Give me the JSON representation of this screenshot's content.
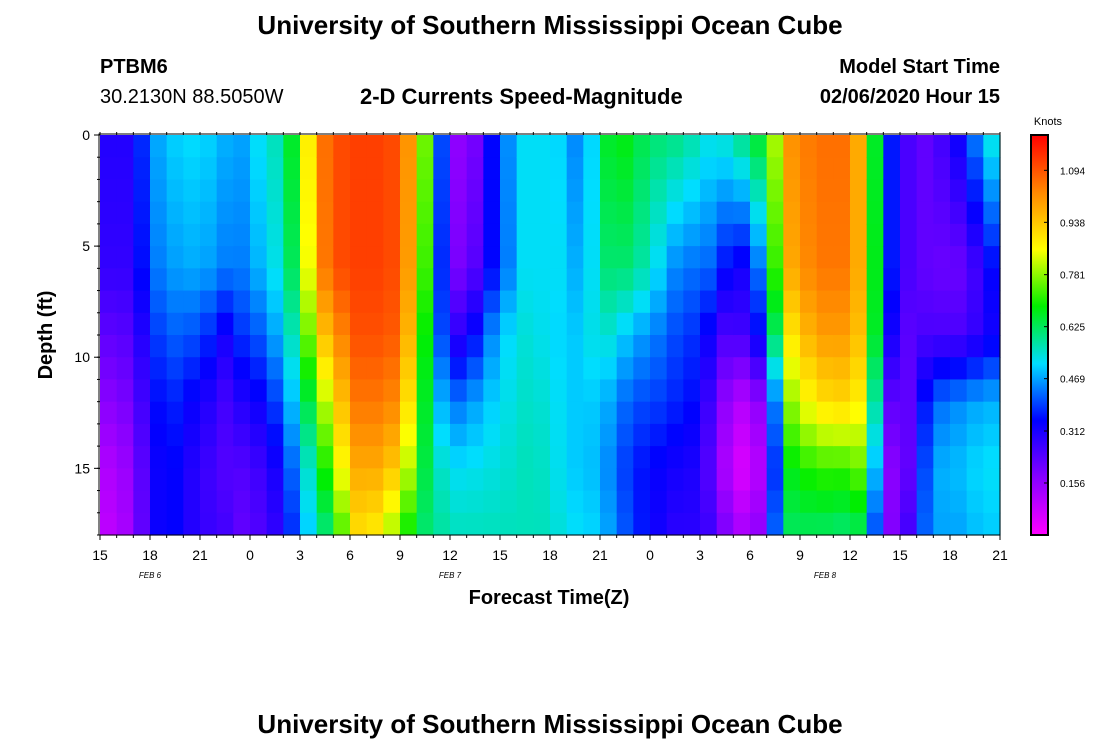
{
  "page": {
    "title_top": "University of Southern Mississippi Ocean Cube",
    "title_bottom": "University of Southern Mississippi Ocean Cube",
    "station_id": "PTBM6",
    "station_location": "30.2130N 88.5050W",
    "center_title": "2-D Currents Speed-Magnitude",
    "model_start_label": "Model Start Time",
    "model_start_value": "02/06/2020 Hour 15"
  },
  "chart_data": {
    "type": "heatmap",
    "title": "2-D Currents Speed-Magnitude",
    "xlabel": "Forecast Time(Z)",
    "ylabel": "Depth (ft)",
    "x_ticks": [
      "15",
      "18",
      "21",
      "0",
      "3",
      "6",
      "9",
      "12",
      "15",
      "18",
      "21",
      "0",
      "3",
      "6",
      "9",
      "12",
      "15",
      "18",
      "21"
    ],
    "x_range_hours": [
      0,
      54
    ],
    "y_ticks": [
      "0",
      "5",
      "10",
      "15"
    ],
    "y_range_ft": [
      0,
      18
    ],
    "date_labels": [
      {
        "label": "FEB 6",
        "hour": 3
      },
      {
        "label": "FEB 7",
        "hour": 21
      },
      {
        "label": "FEB 8",
        "hour": 43.5
      }
    ],
    "colorbar": {
      "unit": "Knots",
      "min": 0,
      "max": 1.2,
      "tick_values": [
        0.156,
        0.312,
        0.469,
        0.625,
        0.781,
        0.938,
        1.094
      ],
      "tick_labels": [
        "0.156",
        "0.312",
        "0.469",
        "0.625",
        "0.781",
        "0.938",
        "1.094"
      ],
      "colors": [
        "#ff00ff",
        "#8800ff",
        "#0000ff",
        "#00ddff",
        "#00ee00",
        "#ffff00",
        "#ff8800",
        "#ff0000"
      ]
    },
    "time_hours": [
      0,
      2,
      3,
      4,
      6,
      7.5,
      8,
      9,
      11,
      12,
      13,
      14,
      15.5,
      16.5,
      18,
      19,
      20,
      21,
      22,
      24,
      25.5,
      27,
      28,
      29,
      30,
      31,
      32,
      33,
      34,
      35,
      36,
      37,
      38,
      39,
      40,
      40.5,
      41,
      43,
      45,
      45.5,
      46,
      47,
      48,
      49,
      50,
      51,
      52,
      53,
      54
    ],
    "depth_ft": [
      0,
      6,
      9,
      12,
      15,
      18
    ],
    "speed_knots": [
      [
        0.3,
        0.28,
        0.22,
        0.16,
        0.1,
        0.08
      ],
      [
        0.3,
        0.28,
        0.24,
        0.2,
        0.16,
        0.14
      ],
      [
        0.45,
        0.42,
        0.36,
        0.32,
        0.3,
        0.3
      ],
      [
        0.5,
        0.46,
        0.42,
        0.38,
        0.36,
        0.36
      ],
      [
        0.52,
        0.48,
        0.4,
        0.32,
        0.28,
        0.28
      ],
      [
        0.48,
        0.44,
        0.32,
        0.26,
        0.24,
        0.26
      ],
      [
        0.44,
        0.42,
        0.38,
        0.3,
        0.24,
        0.22
      ],
      [
        0.5,
        0.46,
        0.38,
        0.3,
        0.24,
        0.22
      ],
      [
        0.58,
        0.55,
        0.5,
        0.42,
        0.34,
        0.3
      ],
      [
        0.74,
        0.7,
        0.62,
        0.56,
        0.5,
        0.45
      ],
      [
        1.02,
        1.0,
        0.9,
        0.72,
        0.6,
        0.55
      ],
      [
        1.1,
        1.1,
        1.0,
        0.9,
        0.8,
        0.65
      ],
      [
        1.12,
        1.12,
        1.1,
        1.05,
        0.98,
        0.9
      ],
      [
        1.12,
        1.12,
        1.1,
        1.05,
        0.98,
        0.88
      ],
      [
        1.1,
        1.1,
        1.08,
        1.02,
        0.92,
        0.75
      ],
      [
        0.92,
        0.9,
        0.85,
        0.78,
        0.7,
        0.62
      ],
      [
        0.6,
        0.55,
        0.52,
        0.54,
        0.58,
        0.6
      ],
      [
        0.2,
        0.2,
        0.28,
        0.42,
        0.52,
        0.56
      ],
      [
        0.12,
        0.18,
        0.3,
        0.45,
        0.52,
        0.56
      ],
      [
        0.42,
        0.4,
        0.5,
        0.52,
        0.54,
        0.56
      ],
      [
        0.52,
        0.52,
        0.54,
        0.55,
        0.56,
        0.56
      ],
      [
        0.52,
        0.52,
        0.52,
        0.54,
        0.55,
        0.56
      ],
      [
        0.5,
        0.52,
        0.5,
        0.5,
        0.5,
        0.52
      ],
      [
        0.4,
        0.44,
        0.5,
        0.5,
        0.5,
        0.52
      ],
      [
        0.62,
        0.6,
        0.56,
        0.5,
        0.48,
        0.5
      ],
      [
        0.7,
        0.62,
        0.52,
        0.45,
        0.42,
        0.44
      ],
      [
        0.65,
        0.6,
        0.48,
        0.4,
        0.36,
        0.38
      ],
      [
        0.62,
        0.55,
        0.45,
        0.4,
        0.35,
        0.34
      ],
      [
        0.6,
        0.48,
        0.42,
        0.38,
        0.32,
        0.3
      ],
      [
        0.6,
        0.42,
        0.38,
        0.36,
        0.32,
        0.28
      ],
      [
        0.55,
        0.44,
        0.38,
        0.34,
        0.3,
        0.3
      ],
      [
        0.52,
        0.4,
        0.28,
        0.2,
        0.18,
        0.24
      ],
      [
        0.58,
        0.3,
        0.22,
        0.12,
        0.06,
        0.14
      ],
      [
        0.62,
        0.34,
        0.3,
        0.1,
        0.05,
        0.12
      ],
      [
        0.7,
        0.52,
        0.38,
        0.22,
        0.16,
        0.2
      ],
      [
        0.8,
        0.72,
        0.62,
        0.44,
        0.38,
        0.42
      ],
      [
        1.0,
        0.96,
        0.86,
        0.75,
        0.66,
        0.62
      ],
      [
        1.06,
        1.05,
        1.0,
        0.9,
        0.72,
        0.62
      ],
      [
        1.06,
        1.05,
        1.0,
        0.92,
        0.72,
        0.6
      ],
      [
        0.98,
        0.98,
        0.95,
        0.88,
        0.75,
        0.62
      ],
      [
        0.9,
        0.9,
        0.9,
        0.86,
        0.76,
        0.6
      ],
      [
        0.42,
        0.44,
        0.42,
        0.3,
        0.22,
        0.2
      ],
      [
        0.3,
        0.28,
        0.22,
        0.15,
        0.12,
        0.16
      ],
      [
        0.2,
        0.22,
        0.24,
        0.3,
        0.32,
        0.36
      ],
      [
        0.24,
        0.22,
        0.26,
        0.42,
        0.48,
        0.48
      ],
      [
        0.28,
        0.2,
        0.24,
        0.44,
        0.48,
        0.46
      ],
      [
        0.38,
        0.22,
        0.26,
        0.46,
        0.5,
        0.48
      ],
      [
        0.5,
        0.3,
        0.3,
        0.48,
        0.52,
        0.5
      ],
      [
        0.58,
        0.38,
        0.34,
        0.48,
        0.52,
        0.5
      ]
    ]
  }
}
